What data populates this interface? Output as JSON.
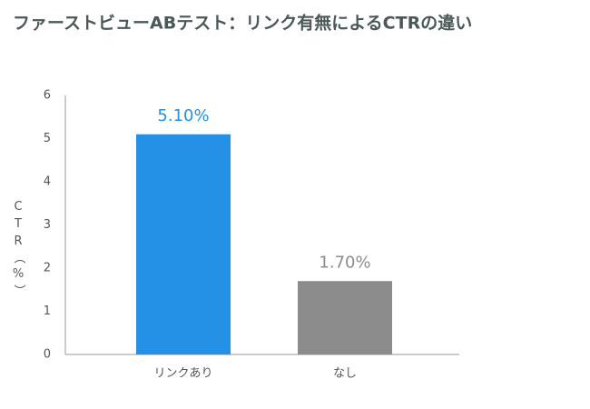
{
  "chart_data": {
    "type": "bar",
    "title": "ファーストビューABテスト：リンク有無によるCTRの違い",
    "ylabel": "CTR（%）",
    "categories": [
      "リンクあり",
      "なし"
    ],
    "values": [
      5.1,
      1.7
    ],
    "value_labels": [
      "5.10%",
      "1.70%"
    ],
    "colors": [
      "#2490e6",
      "#8c8c8c"
    ],
    "ylim": [
      0,
      6
    ],
    "yticks": [
      0,
      1,
      2,
      3,
      4,
      5,
      6
    ],
    "grid": false
  }
}
